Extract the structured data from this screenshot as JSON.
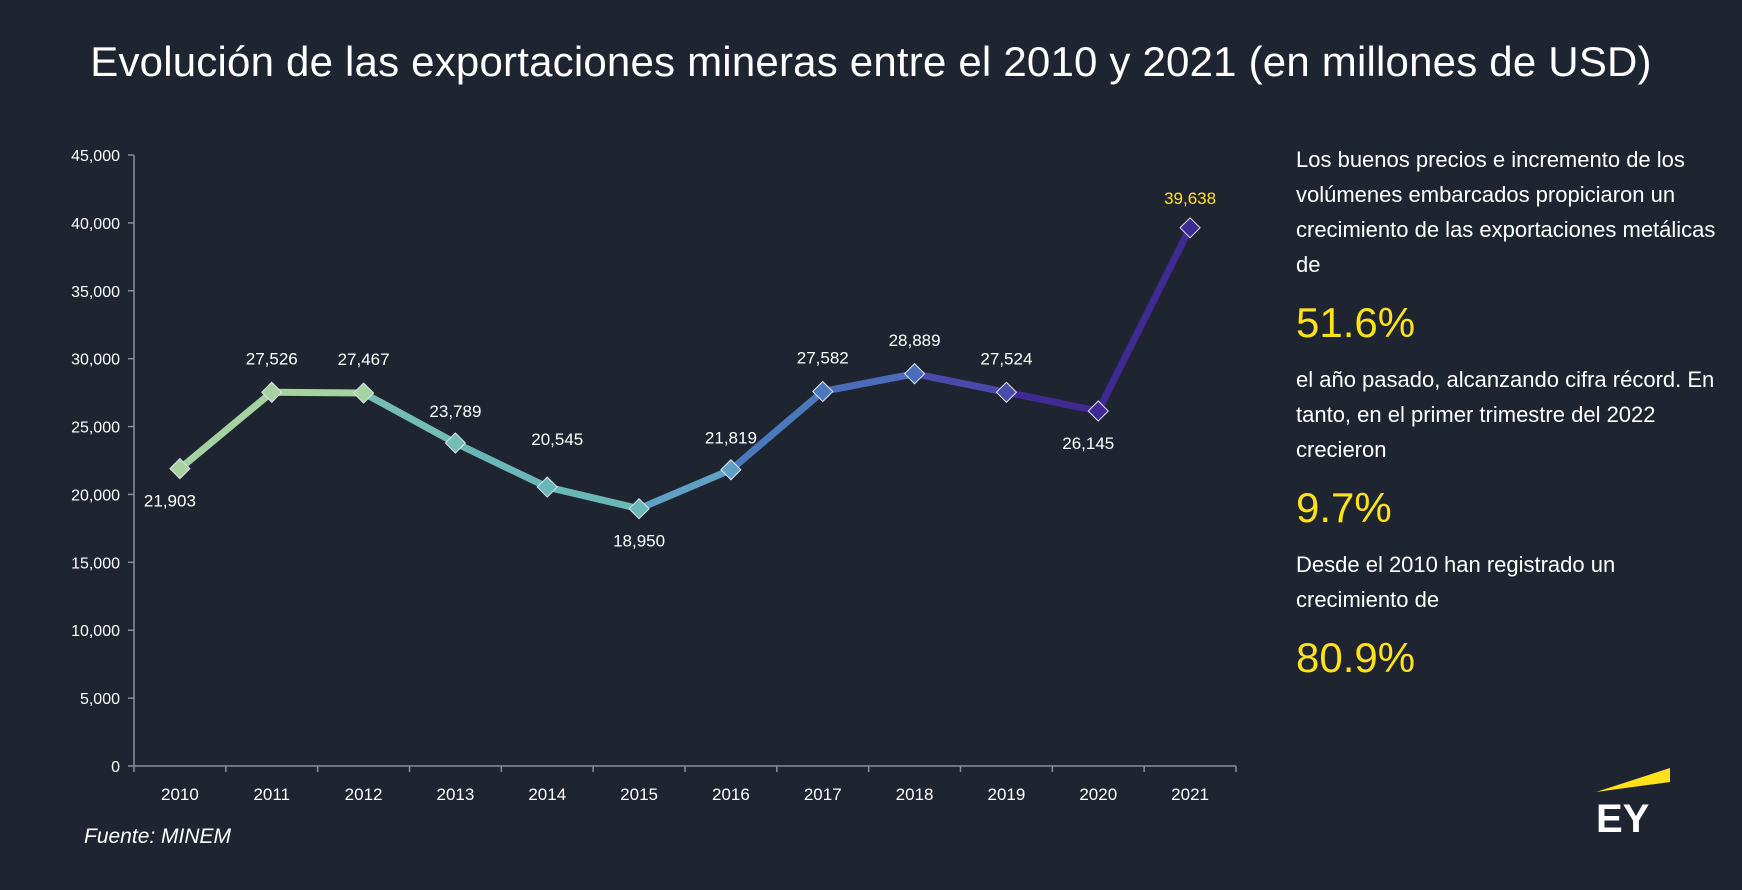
{
  "title": "Evolución de las exportaciones mineras entre el 2010 y 2021 (en millones de USD)",
  "chart_data": {
    "type": "line",
    "title": "Evolución de las exportaciones mineras entre el 2010 y 2021 (en millones de USD)",
    "xlabel": "",
    "ylabel": "",
    "ylim": [
      0,
      45000
    ],
    "yticks": [
      "0",
      "5,000",
      "10,000",
      "15,000",
      "20,000",
      "25,000",
      "30,000",
      "35,000",
      "40,000",
      "45,000"
    ],
    "categories": [
      "2010",
      "2011",
      "2012",
      "2013",
      "2014",
      "2015",
      "2016",
      "2017",
      "2018",
      "2019",
      "2020",
      "2021"
    ],
    "values": [
      21903,
      27526,
      27467,
      23789,
      20545,
      18950,
      21819,
      27582,
      28889,
      27524,
      26145,
      39638
    ],
    "value_labels": [
      "21,903",
      "27,526",
      "27,467",
      "23,789",
      "20,545",
      "18,950",
      "21,819",
      "27,582",
      "28,889",
      "27,524",
      "26,145",
      "39,638"
    ],
    "grid": false,
    "legend": "none",
    "line_colors": [
      "#a6d1a1",
      "#a6d1a1",
      "#a6d1a1",
      "#74bdb4",
      "#6ab7b8",
      "#6ab7b8",
      "#5fa0c4",
      "#4a78bd",
      "#4a6cbb",
      "#4a4aab",
      "#3f2a93",
      "#3f2a93"
    ],
    "highlight_label_color": "#ffe21a"
  },
  "sidebar": {
    "para1": "Los buenos precios e incremento de los volúmenes embarcados propiciaron un crecimiento de las exportaciones metálicas de",
    "stat1": "51.6%",
    "para2": "el año pasado, alcanzando cifra récord. En tanto, en el primer trimestre del 2022 crecieron",
    "stat2": "9.7%",
    "para3": "Desde el 2010 han registrado un crecimiento de",
    "stat3": "80.9%"
  },
  "source": "Fuente: MINEM",
  "logo": {
    "text": "EY",
    "accent_color": "#ffe21a"
  }
}
